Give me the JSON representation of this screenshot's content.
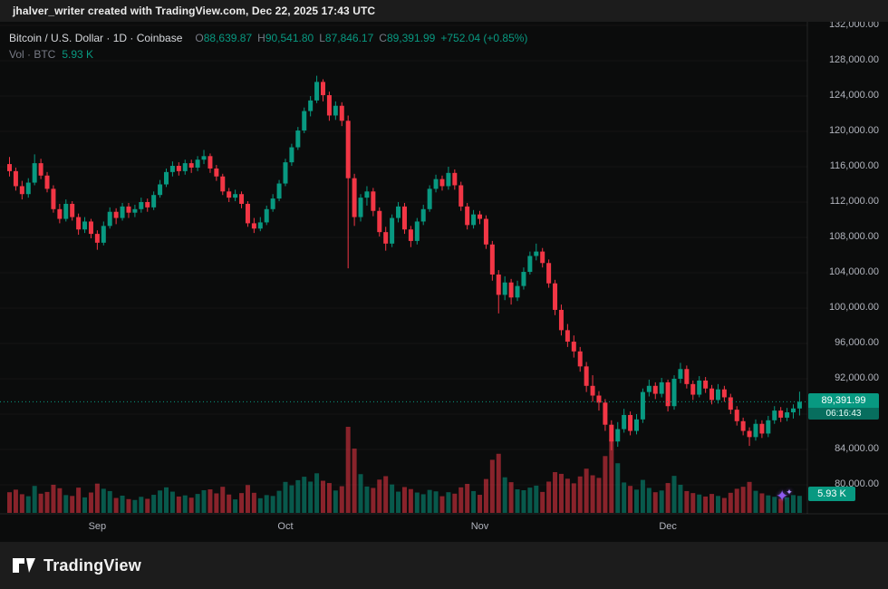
{
  "attribution": "jhalver_writer created with TradingView.com, Dec 22, 2025 17:43 UTC",
  "legend": {
    "title": "Bitcoin / U.S. Dollar · 1D · Coinbase",
    "ohlc": {
      "o_label": "O",
      "o": "88,639.87",
      "h_label": "H",
      "h": "90,541.80",
      "l_label": "L",
      "l": "87,846.17",
      "c_label": "C",
      "c": "89,391.99",
      "change": "+752.04 (+0.85%)"
    },
    "vol_label": "Vol · BTC",
    "vol_value": "5.93 K"
  },
  "price_badge": {
    "price": "89,391.99",
    "countdown": "06:16:43"
  },
  "volume_badge": "5.93 K",
  "footer": {
    "brand": "TradingView"
  },
  "icons": {
    "sparkle": "✦"
  },
  "colors": {
    "up": "#089981",
    "down": "#f23645",
    "vol_up": "rgba(8,153,129,0.55)",
    "vol_down": "rgba(242,54,69,0.55)",
    "grid": "rgba(255,255,255,0.04)",
    "separator": "rgba(255,255,255,0.10)",
    "axis_text": "#b2b5be",
    "badge_bg": "#089981",
    "countdown_bg": "#076e5e"
  },
  "chart_data": {
    "type": "candlestick",
    "title": "Bitcoin / U.S. Dollar · 1D · Coinbase",
    "symbol": "BTC/USD",
    "interval": "1D",
    "exchange": "Coinbase",
    "unit": "USD",
    "current_price": 89391.99,
    "current_candle": {
      "o": 88639.87,
      "h": 90541.8,
      "l": 87846.17,
      "c": 89391.99,
      "change": 752.04,
      "change_pct": 0.85
    },
    "volume_unit": "K BTC",
    "last_volume": 5.93,
    "y_axis": {
      "min": 80000,
      "max": 132000,
      "tick": 4000
    },
    "price_ticks": {
      "values": [
        132000,
        128000,
        124000,
        120000,
        116000,
        112000,
        108000,
        104000,
        100000,
        96000,
        92000,
        84000,
        80000
      ],
      "labels": [
        "132,000.00",
        "128,000.00",
        "124,000.00",
        "120,000.00",
        "116,000.00",
        "112,000.00",
        "108,000.00",
        "104,000.00",
        "100,000.00",
        "96,000.00",
        "92,000.00",
        "84,000.00",
        "80,000.00"
      ]
    },
    "time_axis": [
      {
        "label": "Sep",
        "index": 14
      },
      {
        "label": "Oct",
        "index": 44
      },
      {
        "label": "Nov",
        "index": 75
      },
      {
        "label": "Dec",
        "index": 105
      }
    ],
    "candles_format": [
      "open",
      "high",
      "low",
      "close",
      "volume_k_btc"
    ],
    "candles": [
      [
        116300,
        117100,
        114900,
        115500,
        7.2
      ],
      [
        115500,
        115900,
        113300,
        113800,
        8.1
      ],
      [
        113800,
        114400,
        112300,
        112900,
        6.5
      ],
      [
        112900,
        114700,
        112500,
        114200,
        5.8
      ],
      [
        114200,
        117400,
        113900,
        116400,
        9.4
      ],
      [
        116400,
        116900,
        114600,
        115000,
        6.7
      ],
      [
        115000,
        115400,
        113100,
        113500,
        7.3
      ],
      [
        113500,
        113900,
        110800,
        111200,
        9.8
      ],
      [
        111200,
        111800,
        109600,
        110100,
        8.6
      ],
      [
        110100,
        112300,
        109800,
        111800,
        6.2
      ],
      [
        111800,
        112100,
        109900,
        110300,
        5.9
      ],
      [
        110300,
        110700,
        108300,
        108900,
        8.8
      ],
      [
        108900,
        110300,
        108500,
        109800,
        5.4
      ],
      [
        109800,
        110100,
        107900,
        108400,
        7.1
      ],
      [
        108400,
        108800,
        106600,
        107400,
        10.2
      ],
      [
        107400,
        109800,
        107100,
        109300,
        8.4
      ],
      [
        109300,
        111400,
        109000,
        110900,
        7.6
      ],
      [
        110900,
        111300,
        109500,
        110200,
        5.2
      ],
      [
        110200,
        111900,
        109900,
        111500,
        6.0
      ],
      [
        111500,
        111900,
        110200,
        110800,
        4.8
      ],
      [
        110800,
        111700,
        110300,
        111200,
        4.5
      ],
      [
        111200,
        112500,
        110800,
        112000,
        5.6
      ],
      [
        112000,
        112400,
        110900,
        111400,
        4.9
      ],
      [
        111400,
        113200,
        111100,
        112800,
        6.3
      ],
      [
        112800,
        114500,
        112500,
        114000,
        7.8
      ],
      [
        114000,
        115800,
        113700,
        115400,
        8.9
      ],
      [
        115400,
        116600,
        114900,
        116100,
        7.4
      ],
      [
        116100,
        116500,
        115000,
        115500,
        5.7
      ],
      [
        115500,
        116800,
        115100,
        116400,
        6.1
      ],
      [
        116400,
        116800,
        115300,
        115900,
        5.3
      ],
      [
        115900,
        117200,
        115500,
        116800,
        6.6
      ],
      [
        116800,
        117900,
        116300,
        117200,
        7.9
      ],
      [
        117200,
        117500,
        115300,
        115800,
        8.2
      ],
      [
        115800,
        116200,
        114400,
        114900,
        6.8
      ],
      [
        114900,
        115200,
        112800,
        113200,
        9.1
      ],
      [
        113200,
        113600,
        112000,
        112500,
        6.4
      ],
      [
        112500,
        113400,
        112100,
        112900,
        4.7
      ],
      [
        112900,
        113200,
        111300,
        111800,
        6.9
      ],
      [
        111800,
        112100,
        109200,
        109600,
        9.7
      ],
      [
        109600,
        110200,
        108500,
        109000,
        7.0
      ],
      [
        109000,
        110300,
        108700,
        109700,
        5.1
      ],
      [
        109700,
        111600,
        109400,
        111200,
        6.2
      ],
      [
        111200,
        112900,
        110900,
        112400,
        5.9
      ],
      [
        112400,
        114500,
        112100,
        114100,
        7.7
      ],
      [
        114100,
        116900,
        113800,
        116500,
        10.8
      ],
      [
        116500,
        118600,
        116100,
        118200,
        9.6
      ],
      [
        118200,
        120500,
        117900,
        120100,
        11.4
      ],
      [
        120100,
        122700,
        119800,
        122300,
        12.6
      ],
      [
        122300,
        124000,
        121700,
        123500,
        10.9
      ],
      [
        123500,
        126300,
        123200,
        125600,
        13.8
      ],
      [
        125600,
        125900,
        123400,
        124100,
        11.2
      ],
      [
        124100,
        124500,
        121200,
        121800,
        10.4
      ],
      [
        121800,
        123400,
        121300,
        122900,
        7.8
      ],
      [
        122900,
        123300,
        120600,
        121200,
        9.3
      ],
      [
        121200,
        121800,
        104500,
        114700,
        30.0
      ],
      [
        114700,
        115200,
        109300,
        110300,
        22.4
      ],
      [
        110300,
        112900,
        109800,
        112500,
        13.5
      ],
      [
        112500,
        113800,
        111600,
        113200,
        9.2
      ],
      [
        113200,
        113600,
        110400,
        111000,
        8.7
      ],
      [
        111000,
        111400,
        108100,
        108600,
        11.6
      ],
      [
        108600,
        109200,
        106500,
        107300,
        12.8
      ],
      [
        107300,
        110600,
        106900,
        110200,
        9.9
      ],
      [
        110200,
        112000,
        109700,
        111500,
        7.4
      ],
      [
        111500,
        111900,
        108400,
        108900,
        9.0
      ],
      [
        108900,
        109300,
        106900,
        107600,
        8.3
      ],
      [
        107600,
        110200,
        107200,
        109800,
        7.1
      ],
      [
        109800,
        111700,
        109400,
        111200,
        6.5
      ],
      [
        111200,
        113900,
        110900,
        113500,
        8.0
      ],
      [
        113500,
        115100,
        113100,
        114600,
        7.5
      ],
      [
        114600,
        115000,
        113300,
        113800,
        5.8
      ],
      [
        113800,
        116000,
        113400,
        115300,
        7.2
      ],
      [
        115300,
        115700,
        113400,
        113900,
        6.7
      ],
      [
        113900,
        114300,
        111000,
        111500,
        8.9
      ],
      [
        111500,
        111900,
        108900,
        109400,
        10.1
      ],
      [
        109400,
        111100,
        109000,
        110600,
        7.6
      ],
      [
        110600,
        111000,
        109500,
        110100,
        6.3
      ],
      [
        110100,
        110500,
        106700,
        107200,
        11.8
      ],
      [
        107200,
        107600,
        103100,
        103800,
        18.5
      ],
      [
        103800,
        104300,
        99400,
        101500,
        20.6
      ],
      [
        101500,
        103600,
        100900,
        102900,
        12.4
      ],
      [
        102900,
        103300,
        100400,
        101200,
        10.7
      ],
      [
        101200,
        103100,
        100800,
        102500,
        8.2
      ],
      [
        102500,
        104600,
        102100,
        104100,
        7.9
      ],
      [
        104100,
        106400,
        103800,
        105900,
        8.8
      ],
      [
        105900,
        107300,
        105400,
        106400,
        9.5
      ],
      [
        106400,
        106800,
        104600,
        105100,
        7.3
      ],
      [
        105100,
        105500,
        102300,
        102800,
        10.9
      ],
      [
        102800,
        103200,
        99200,
        99800,
        14.2
      ],
      [
        99800,
        100400,
        96900,
        97500,
        13.6
      ],
      [
        97500,
        98200,
        95600,
        96200,
        11.9
      ],
      [
        96200,
        96900,
        94400,
        95100,
        10.3
      ],
      [
        95100,
        95600,
        92800,
        93400,
        12.7
      ],
      [
        93400,
        93900,
        90500,
        91200,
        15.4
      ],
      [
        91200,
        92400,
        89400,
        90100,
        13.1
      ],
      [
        90100,
        90600,
        88400,
        89300,
        12.2
      ],
      [
        89300,
        89700,
        86100,
        86800,
        19.8
      ],
      [
        86800,
        87300,
        83900,
        84900,
        25.6
      ],
      [
        84900,
        87100,
        84300,
        86300,
        17.3
      ],
      [
        86300,
        88600,
        85900,
        87900,
        10.6
      ],
      [
        87900,
        88300,
        85600,
        86100,
        9.4
      ],
      [
        86100,
        88000,
        85700,
        87400,
        8.1
      ],
      [
        87400,
        90900,
        87000,
        90500,
        11.5
      ],
      [
        90500,
        91900,
        90000,
        91200,
        8.7
      ],
      [
        91200,
        91600,
        89700,
        90300,
        7.2
      ],
      [
        90300,
        92100,
        89900,
        91600,
        7.8
      ],
      [
        91600,
        91900,
        88300,
        88900,
        10.4
      ],
      [
        88900,
        92400,
        88500,
        92000,
        12.9
      ],
      [
        92000,
        93800,
        91500,
        93100,
        9.8
      ],
      [
        93100,
        93500,
        90900,
        91400,
        7.6
      ],
      [
        91400,
        91800,
        89600,
        90200,
        6.9
      ],
      [
        90200,
        92300,
        89900,
        91800,
        6.4
      ],
      [
        91800,
        92200,
        90400,
        90900,
        5.7
      ],
      [
        90900,
        91300,
        89100,
        89600,
        6.6
      ],
      [
        89600,
        91400,
        89200,
        90800,
        5.9
      ],
      [
        90800,
        91200,
        89400,
        89900,
        5.2
      ],
      [
        89900,
        90300,
        88000,
        88500,
        7.0
      ],
      [
        88500,
        88900,
        86700,
        87200,
        8.4
      ],
      [
        87200,
        87600,
        85600,
        86100,
        9.1
      ],
      [
        86100,
        86500,
        84400,
        85400,
        10.8
      ],
      [
        85400,
        87400,
        85000,
        86900,
        7.7
      ],
      [
        86900,
        87300,
        85300,
        85800,
        6.8
      ],
      [
        85800,
        87800,
        85400,
        87300,
        6.1
      ],
      [
        87300,
        88900,
        86900,
        88400,
        5.6
      ],
      [
        88400,
        88800,
        87100,
        87600,
        4.9
      ],
      [
        87600,
        88700,
        87200,
        88200,
        5.4
      ],
      [
        88200,
        89100,
        87500,
        88640,
        6.2
      ],
      [
        88639.87,
        90541.8,
        87846.17,
        89391.99,
        5.93
      ]
    ]
  }
}
